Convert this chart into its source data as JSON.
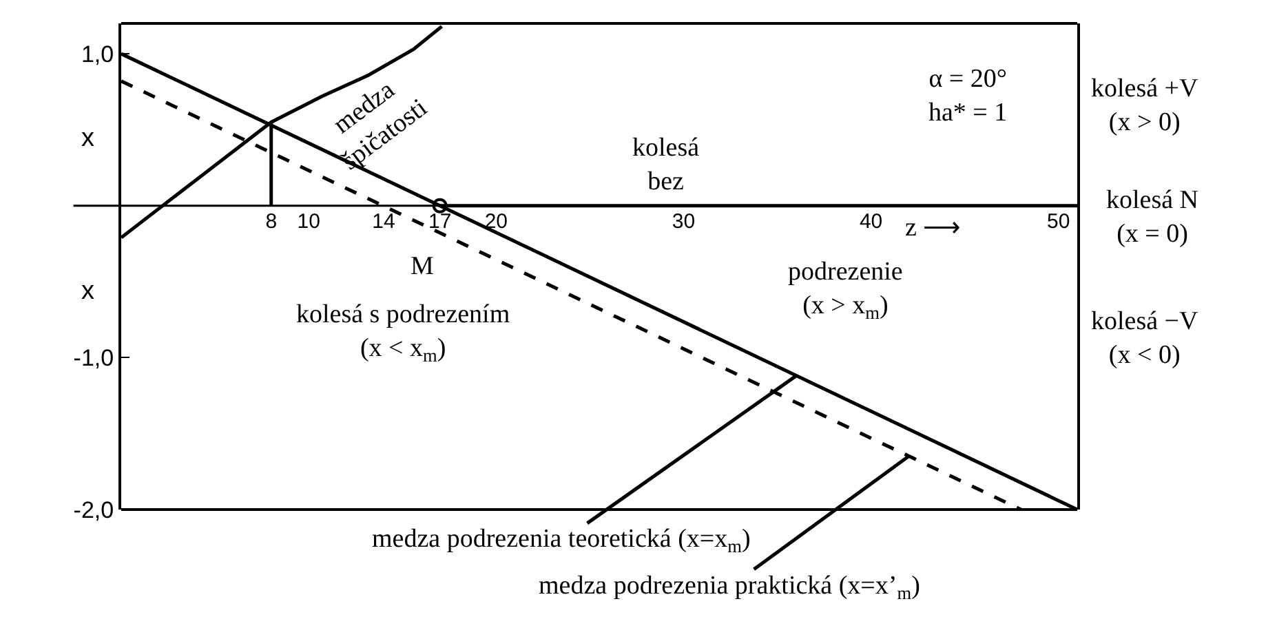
{
  "chart_data": {
    "type": "line",
    "xlim": [
      0,
      51
    ],
    "ylim": [
      -2.0,
      1.2
    ],
    "xticks": [
      8,
      10,
      14,
      17,
      20,
      30,
      40,
      50
    ],
    "yticks": [
      {
        "value": 1.0,
        "label": "1,0"
      },
      {
        "value": -1.0,
        "label": "-1,0"
      },
      {
        "value": -2.0,
        "label": "-2,0"
      }
    ],
    "grid": false,
    "series": [
      {
        "color": "#000000",
        "x": [
          0,
          51
        ],
        "values": [
          1.0,
          -2.0
        ],
        "line_style": "solid"
      },
      {
        "color": "#000000",
        "x": [
          0,
          48
        ],
        "values": [
          0.82,
          -2.0
        ],
        "line_style": "dashed"
      },
      {
        "color": "#000000",
        "x": [
          0,
          8,
          10.7,
          13.2,
          15.6,
          17.1
        ],
        "values": [
          -0.21,
          0.55,
          0.72,
          0.86,
          1.03,
          1.18
        ],
        "line_style": "solid"
      },
      {
        "color": "#000000",
        "x": [
          8,
          8
        ],
        "values": [
          0,
          0.55
        ],
        "line_style": "solid"
      },
      {
        "color": "#000000",
        "x": [
          17,
          51
        ],
        "values": [
          0,
          0
        ],
        "line_style": "solid"
      },
      {
        "color": "#000000",
        "type": "scatter",
        "x": [
          17
        ],
        "values": [
          0
        ],
        "marker": "circle"
      }
    ],
    "ref_lines": [
      {
        "axis": "y",
        "value": 0,
        "color": "#000000"
      }
    ],
    "annotations": [
      "medza\nšpičatosti",
      "α = 20°\nha* = 1",
      "kolesá\nbez",
      "podrezenie\n(x > x$_{m}$)",
      "kolesá s podrezením\n(x < x$_{m}$)",
      "M",
      "z ⟶",
      {
        "text": "medza podrezenia teoretická (x=x$_{m}$)",
        "x": 36,
        "y": -1.12
      },
      {
        "text": "medza podrezenia praktická (x=x’$_{m}$)",
        "x": 42,
        "y": -1.65
      },
      "x",
      "x",
      "kolesá +V\n(x > 0)",
      "kolesá N\n(x = 0)",
      "kolesá −V\n(x < 0)"
    ]
  }
}
